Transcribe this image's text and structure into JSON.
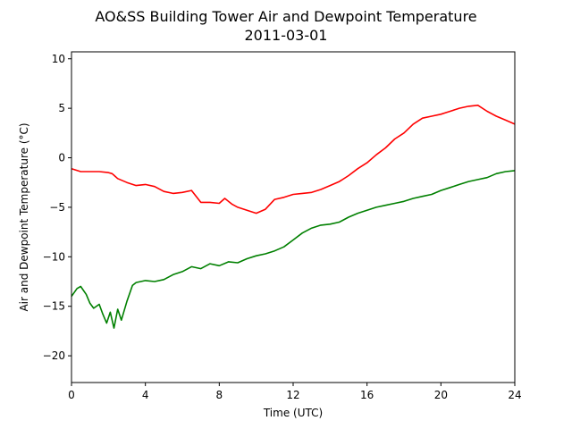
{
  "chart_data": {
    "type": "line",
    "title": "AO&SS Building Tower Air and Dewpoint Temperature",
    "subtitle": "2011-03-01",
    "xlabel": "Time (UTC)",
    "ylabel": "Air and Dewpoint Temperature (°C)",
    "xlim": [
      0,
      24
    ],
    "ylim": [
      -22.7,
      10.7
    ],
    "xticks": [
      0,
      4,
      8,
      12,
      16,
      20,
      24
    ],
    "yticks": [
      -20,
      -15,
      -10,
      -5,
      0,
      5,
      10
    ],
    "grid": false,
    "series": [
      {
        "color": "#ff0000",
        "x": [
          0,
          0.5,
          1,
          1.5,
          2,
          2.2,
          2.5,
          3,
          3.5,
          4,
          4.5,
          5,
          5.5,
          6,
          6.5,
          7,
          7.5,
          8,
          8.3,
          8.7,
          9,
          9.5,
          10,
          10.5,
          11,
          11.5,
          12,
          12.5,
          13,
          13.5,
          14,
          14.5,
          15,
          15.5,
          16,
          16.5,
          17,
          17.5,
          18,
          18.5,
          19,
          19.5,
          20,
          20.5,
          21,
          21.5,
          22,
          22.5,
          23,
          23.5,
          24
        ],
        "y": [
          -1.1,
          -1.4,
          -1.4,
          -1.4,
          -1.5,
          -1.6,
          -2.1,
          -2.5,
          -2.8,
          -2.7,
          -2.9,
          -3.4,
          -3.6,
          -3.5,
          -3.3,
          -4.5,
          -4.5,
          -4.6,
          -4.1,
          -4.7,
          -5.0,
          -5.3,
          -5.6,
          -5.2,
          -4.2,
          -4.0,
          -3.7,
          -3.6,
          -3.5,
          -3.2,
          -2.8,
          -2.4,
          -1.8,
          -1.1,
          -0.5,
          0.3,
          1.0,
          1.9,
          2.5,
          3.4,
          4.0,
          4.2,
          4.4,
          4.7,
          5.0,
          5.2,
          5.3,
          4.7,
          4.2,
          3.8,
          3.4
        ]
      },
      {
        "color": "#008000",
        "x": [
          0,
          0.3,
          0.5,
          0.8,
          1,
          1.2,
          1.5,
          1.7,
          1.9,
          2.1,
          2.3,
          2.5,
          2.7,
          3,
          3.3,
          3.5,
          4,
          4.5,
          5,
          5.5,
          6,
          6.5,
          7,
          7.5,
          8,
          8.5,
          9,
          9.5,
          10,
          10.5,
          11,
          11.5,
          12,
          12.5,
          13,
          13.5,
          14,
          14.5,
          15,
          15.5,
          16,
          16.5,
          17,
          17.5,
          18,
          18.5,
          19,
          19.5,
          20,
          20.5,
          21,
          21.5,
          22,
          22.5,
          23,
          23.5,
          24
        ],
        "y": [
          -14.0,
          -13.2,
          -13.0,
          -13.8,
          -14.7,
          -15.2,
          -14.8,
          -15.8,
          -16.7,
          -15.6,
          -17.2,
          -15.3,
          -16.4,
          -14.5,
          -12.9,
          -12.6,
          -12.4,
          -12.5,
          -12.3,
          -11.8,
          -11.5,
          -11.0,
          -11.2,
          -10.7,
          -10.9,
          -10.5,
          -10.6,
          -10.2,
          -9.9,
          -9.7,
          -9.4,
          -9.0,
          -8.3,
          -7.6,
          -7.1,
          -6.8,
          -6.7,
          -6.5,
          -6.0,
          -5.6,
          -5.3,
          -5.0,
          -4.8,
          -4.6,
          -4.4,
          -4.1,
          -3.9,
          -3.7,
          -3.3,
          -3.0,
          -2.7,
          -2.4,
          -2.2,
          -2.0,
          -1.6,
          -1.4,
          -1.3
        ]
      }
    ]
  }
}
